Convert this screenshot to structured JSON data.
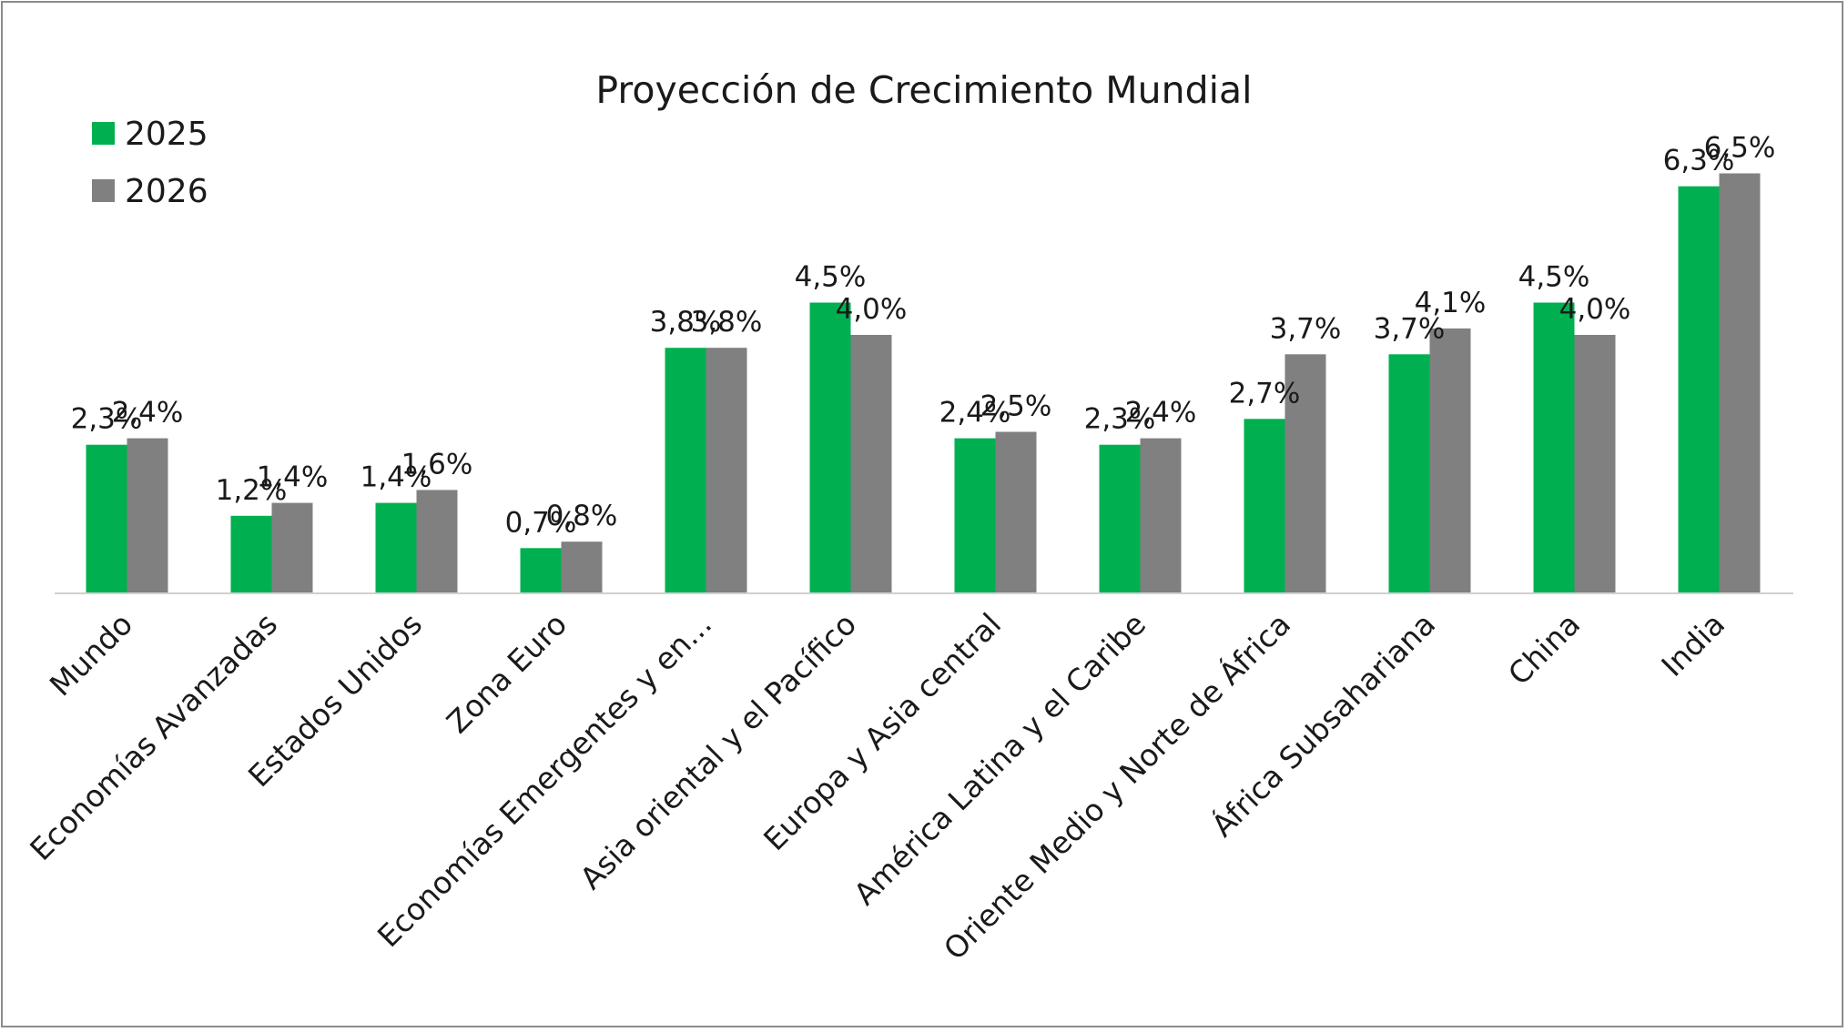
{
  "chart_data": {
    "type": "bar",
    "title": "Proyección de Crecimiento Mundial",
    "categories": [
      "Mundo",
      "Economías Avanzadas",
      "Estados Unidos",
      "Zona Euro",
      "Economías Emergentes y en...",
      "Asia oriental y el Pacífico",
      "Europa y Asia central",
      "América Latina y el Caribe",
      "Oriente Medio y Norte de África",
      "África Subsahariana",
      "China",
      "India"
    ],
    "series": [
      {
        "name": "2025",
        "color": "#00b050",
        "values": [
          2.3,
          1.2,
          1.4,
          0.7,
          3.8,
          4.5,
          2.4,
          2.3,
          2.7,
          3.7,
          4.5,
          6.3
        ],
        "labels": [
          "2,3%",
          "1,2%",
          "1,4%",
          "0,7%",
          "3,8%",
          "4,5%",
          "2,4%",
          "2,3%",
          "2,7%",
          "3,7%",
          "4,5%",
          "6,3%"
        ]
      },
      {
        "name": "2026",
        "color": "#808080",
        "values": [
          2.4,
          1.4,
          1.6,
          0.8,
          3.8,
          4.0,
          2.5,
          2.4,
          3.7,
          4.1,
          4.0,
          6.5
        ],
        "labels": [
          "2,4%",
          "1,4%",
          "1,6%",
          "0,8%",
          "3,8%",
          "4,0%",
          "2,5%",
          "2,4%",
          "3,7%",
          "4,1%",
          "4,0%",
          "6,5%"
        ]
      }
    ],
    "ylim": [
      0,
      7
    ],
    "legend_position": "top-left",
    "grid": false
  }
}
